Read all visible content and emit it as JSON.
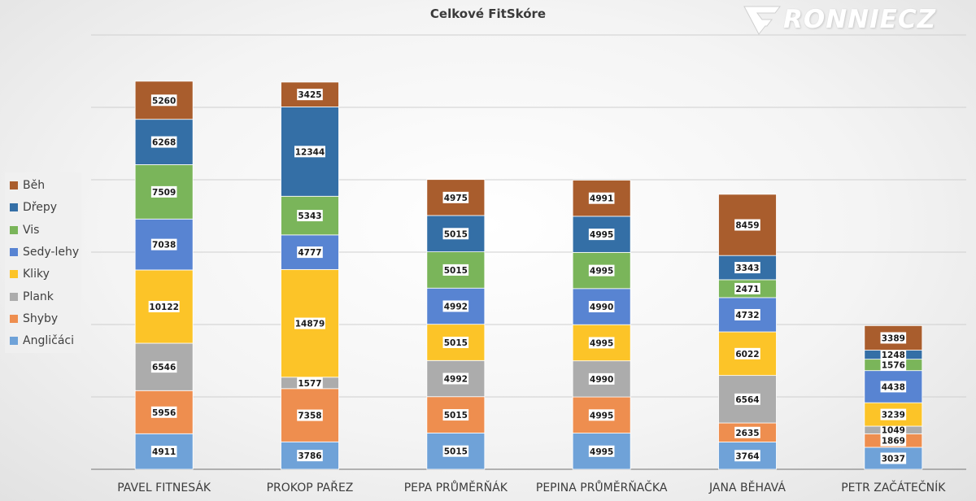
{
  "watermark": {
    "text": "RONNIECZ"
  },
  "chart_data": {
    "type": "bar",
    "stacked": true,
    "title": "Celkové FitSkóre",
    "xlabel": "",
    "ylabel": "",
    "ylim": [
      0,
      60000
    ],
    "grid": true,
    "y_tick_labels_visible": false,
    "legend_position": "left",
    "categories": [
      "PAVEL FITNESÁK",
      "PROKOP PAŘEZ",
      "PEPA PRŮMĚRŇÁK",
      "PEPINA PRŮMĚRŇAČKA",
      "JANA BĚHAVÁ",
      "PETR ZAČÁTEČNÍK"
    ],
    "series": [
      {
        "name": "Angličáci",
        "color": "#6fa2d8",
        "values": [
          4911,
          3786,
          5015,
          4995,
          3764,
          3037
        ]
      },
      {
        "name": "Shyby",
        "color": "#ee8e4f",
        "values": [
          5956,
          7358,
          5015,
          4995,
          2635,
          1869
        ]
      },
      {
        "name": "Plank",
        "color": "#acacac",
        "values": [
          6546,
          1577,
          4992,
          4990,
          6564,
          1049
        ]
      },
      {
        "name": "Kliky",
        "color": "#fcc428",
        "values": [
          10122,
          14879,
          5015,
          4995,
          6022,
          3239
        ]
      },
      {
        "name": "Sedy-lehy",
        "color": "#5884d2",
        "values": [
          7038,
          4777,
          4992,
          4990,
          4732,
          4438
        ]
      },
      {
        "name": "Vis",
        "color": "#7ab55a",
        "values": [
          7509,
          5343,
          5015,
          4995,
          2471,
          1576
        ]
      },
      {
        "name": "Dřepy",
        "color": "#346fa6",
        "values": [
          6268,
          12344,
          5015,
          4995,
          3343,
          1248
        ]
      },
      {
        "name": "Běh",
        "color": "#a95d2d",
        "values": [
          5260,
          3425,
          4975,
          4991,
          8459,
          3389
        ]
      }
    ]
  }
}
